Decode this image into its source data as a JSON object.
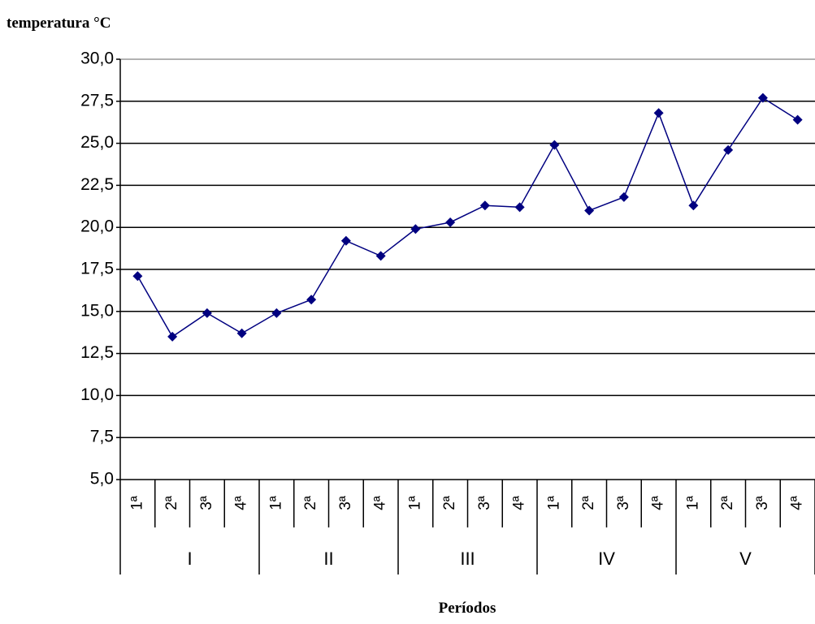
{
  "chart_data": {
    "type": "line",
    "title": "temperatura °C",
    "x_label": "Períodos",
    "categories": [
      "1ª",
      "2ª",
      "3ª",
      "4ª",
      "1ª",
      "2ª",
      "3ª",
      "4ª",
      "1ª",
      "2ª",
      "3ª",
      "4ª",
      "1ª",
      "2ª",
      "3ª",
      "4ª",
      "1ª",
      "2ª",
      "3ª",
      "4ª"
    ],
    "groups": [
      "I",
      "II",
      "III",
      "IV",
      "V"
    ],
    "series": [
      {
        "color": "#000080",
        "values": [
          17.1,
          13.5,
          14.9,
          13.7,
          14.9,
          15.7,
          19.2,
          18.3,
          19.9,
          20.3,
          21.3,
          21.2,
          24.9,
          21.0,
          21.8,
          26.8,
          21.3,
          24.6,
          27.7,
          26.4
        ]
      }
    ],
    "ylim": [
      5,
      30
    ],
    "yticks": [
      {
        "value": 5,
        "label": "5,0"
      },
      {
        "value": 7.5,
        "label": "7,5"
      },
      {
        "value": 10,
        "label": "10,0"
      },
      {
        "value": 12.5,
        "label": "12,5"
      },
      {
        "value": 15,
        "label": "15,0"
      },
      {
        "value": 17.5,
        "label": "17,5"
      },
      {
        "value": 20,
        "label": "20,0"
      },
      {
        "value": 22.5,
        "label": "22,5"
      },
      {
        "value": 25,
        "label": "25,0"
      },
      {
        "value": 27.5,
        "label": "27,5"
      },
      {
        "value": 30,
        "label": "30,0"
      }
    ],
    "grid": true
  }
}
